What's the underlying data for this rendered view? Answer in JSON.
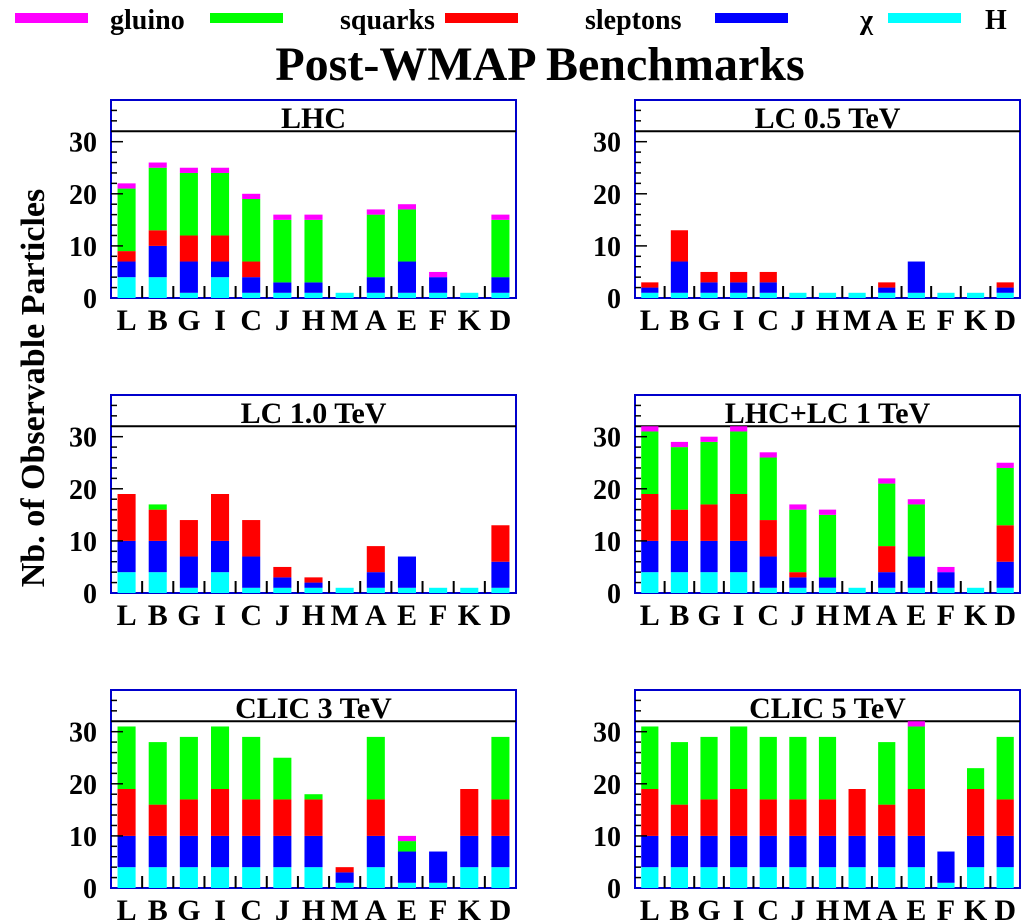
{
  "title": "Post-WMAP Benchmarks",
  "ylabel": "Nb. of Observable Particles",
  "legend": [
    {
      "name": "gluino",
      "color": "#ff00ff"
    },
    {
      "name": "squarks",
      "color": "#00ff00"
    },
    {
      "name": "sleptons",
      "color": "#ff0000"
    },
    {
      "name": "χ",
      "color": "#0000ff"
    },
    {
      "name": "H",
      "color": "#00ffff"
    }
  ],
  "chart_data": {
    "type": "bar",
    "stacked": true,
    "ylim": [
      0,
      38
    ],
    "yticks": [
      0,
      10,
      20,
      30
    ],
    "reference_line": 32,
    "categories": [
      "L",
      "B",
      "G",
      "I",
      "C",
      "J",
      "H",
      "M",
      "A",
      "E",
      "F",
      "K",
      "D"
    ],
    "series_order": [
      "H",
      "χ",
      "sleptons",
      "squarks",
      "gluino"
    ],
    "panels": [
      {
        "title": "LHC",
        "stacks": [
          [
            4,
            3,
            2,
            12,
            1
          ],
          [
            4,
            6,
            3,
            12,
            1
          ],
          [
            1,
            6,
            5,
            12,
            1
          ],
          [
            4,
            3,
            5,
            12,
            1
          ],
          [
            1,
            3,
            3,
            12,
            1
          ],
          [
            1,
            2,
            0,
            12,
            1
          ],
          [
            1,
            2,
            0,
            12,
            1
          ],
          [
            1,
            0,
            0,
            0,
            0
          ],
          [
            1,
            3,
            0,
            12,
            1
          ],
          [
            1,
            6,
            0,
            10,
            1
          ],
          [
            1,
            3,
            0,
            0,
            1
          ],
          [
            1,
            0,
            0,
            0,
            0
          ],
          [
            1,
            3,
            0,
            11,
            1
          ]
        ]
      },
      {
        "title": "LC 0.5 TeV",
        "stacks": [
          [
            1,
            1,
            1,
            0,
            0
          ],
          [
            1,
            6,
            6,
            0,
            0
          ],
          [
            1,
            2,
            2,
            0,
            0
          ],
          [
            1,
            2,
            2,
            0,
            0
          ],
          [
            1,
            2,
            2,
            0,
            0
          ],
          [
            1,
            0,
            0,
            0,
            0
          ],
          [
            1,
            0,
            0,
            0,
            0
          ],
          [
            1,
            0,
            0,
            0,
            0
          ],
          [
            1,
            1,
            1,
            0,
            0
          ],
          [
            1,
            6,
            0,
            0,
            0
          ],
          [
            1,
            0,
            0,
            0,
            0
          ],
          [
            1,
            0,
            0,
            0,
            0
          ],
          [
            1,
            1,
            1,
            0,
            0
          ]
        ]
      },
      {
        "title": "LC 1.0 TeV",
        "stacks": [
          [
            4,
            6,
            9,
            0,
            0
          ],
          [
            4,
            6,
            6,
            1,
            0
          ],
          [
            1,
            6,
            7,
            0,
            0
          ],
          [
            4,
            6,
            9,
            0,
            0
          ],
          [
            1,
            6,
            7,
            0,
            0
          ],
          [
            1,
            2,
            2,
            0,
            0
          ],
          [
            1,
            1,
            1,
            0,
            0
          ],
          [
            1,
            0,
            0,
            0,
            0
          ],
          [
            1,
            3,
            5,
            0,
            0
          ],
          [
            1,
            6,
            0,
            0,
            0
          ],
          [
            1,
            0,
            0,
            0,
            0
          ],
          [
            1,
            0,
            0,
            0,
            0
          ],
          [
            1,
            5,
            7,
            0,
            0
          ]
        ]
      },
      {
        "title": "LHC+LC 1 TeV",
        "stacks": [
          [
            4,
            6,
            9,
            12,
            1
          ],
          [
            4,
            6,
            6,
            12,
            1
          ],
          [
            4,
            6,
            7,
            12,
            1
          ],
          [
            4,
            6,
            9,
            12,
            1
          ],
          [
            1,
            6,
            7,
            12,
            1
          ],
          [
            1,
            2,
            1,
            12,
            1
          ],
          [
            1,
            2,
            0,
            12,
            1
          ],
          [
            1,
            0,
            0,
            0,
            0
          ],
          [
            1,
            3,
            5,
            12,
            1
          ],
          [
            1,
            6,
            0,
            10,
            1
          ],
          [
            1,
            3,
            0,
            0,
            1
          ],
          [
            1,
            0,
            0,
            0,
            0
          ],
          [
            1,
            5,
            7,
            11,
            1
          ]
        ]
      },
      {
        "title": "CLIC 3 TeV",
        "stacks": [
          [
            4,
            6,
            9,
            12,
            0
          ],
          [
            4,
            6,
            6,
            12,
            0
          ],
          [
            4,
            6,
            7,
            12,
            0
          ],
          [
            4,
            6,
            9,
            12,
            0
          ],
          [
            4,
            6,
            7,
            12,
            0
          ],
          [
            4,
            6,
            7,
            8,
            0
          ],
          [
            4,
            6,
            7,
            1,
            0
          ],
          [
            1,
            2,
            1,
            0,
            0
          ],
          [
            4,
            6,
            7,
            12,
            0
          ],
          [
            1,
            6,
            0,
            2,
            1
          ],
          [
            1,
            6,
            0,
            0,
            0
          ],
          [
            4,
            6,
            9,
            0,
            0
          ],
          [
            4,
            6,
            7,
            12,
            0
          ]
        ]
      },
      {
        "title": "CLIC 5 TeV",
        "stacks": [
          [
            4,
            6,
            9,
            12,
            0
          ],
          [
            4,
            6,
            6,
            12,
            0
          ],
          [
            4,
            6,
            7,
            12,
            0
          ],
          [
            4,
            6,
            9,
            12,
            0
          ],
          [
            4,
            6,
            7,
            12,
            0
          ],
          [
            4,
            6,
            7,
            12,
            0
          ],
          [
            4,
            6,
            7,
            12,
            0
          ],
          [
            4,
            6,
            9,
            0,
            0
          ],
          [
            4,
            6,
            6,
            12,
            0
          ],
          [
            4,
            6,
            9,
            12,
            1
          ],
          [
            1,
            6,
            0,
            0,
            0
          ],
          [
            4,
            6,
            9,
            4,
            0
          ],
          [
            4,
            6,
            7,
            12,
            0
          ]
        ]
      }
    ]
  }
}
